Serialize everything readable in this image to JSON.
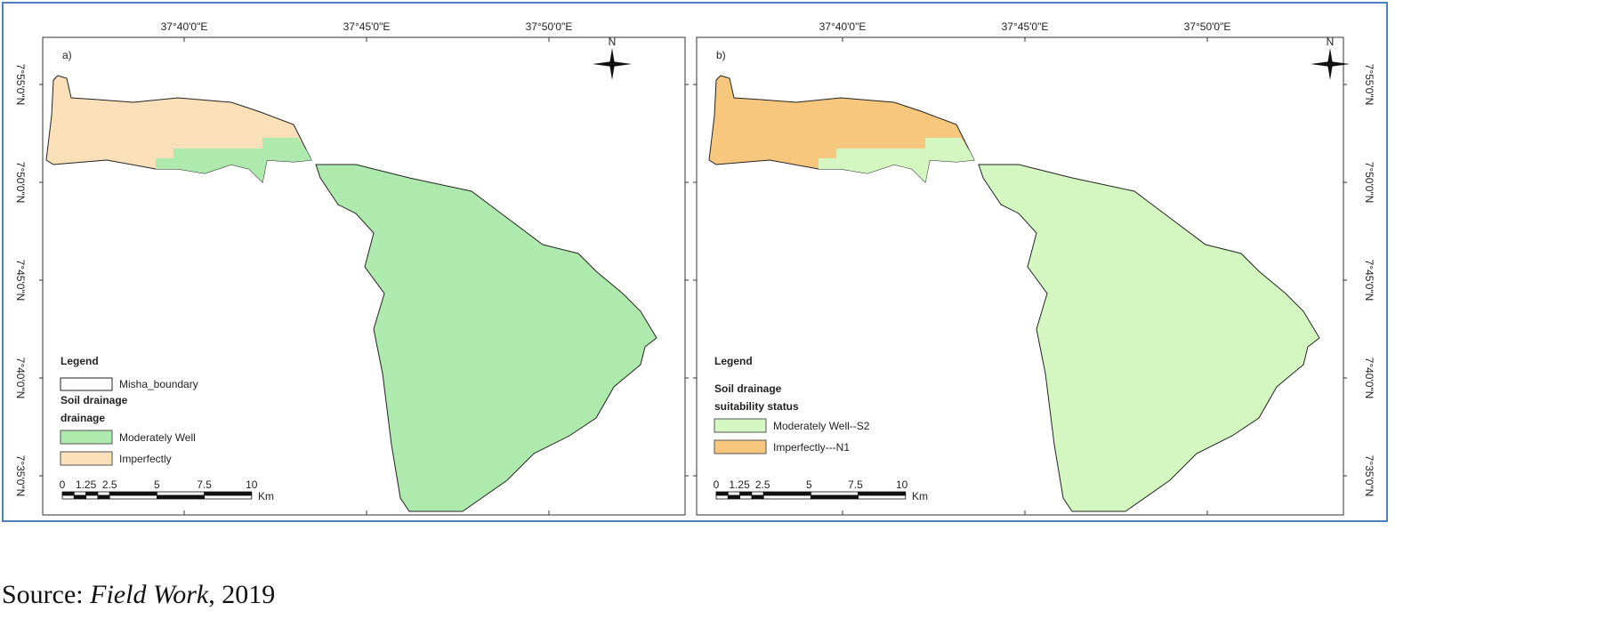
{
  "panels": [
    {
      "label": "a)",
      "top_ticks": [
        "37°40'0\"E",
        "37°45'0\"E",
        "37°50'0\"E"
      ],
      "side_ticks": [
        "7°55'0\"N",
        "7°50'0\"N",
        "7°45'0\"N",
        "7°40'0\"N",
        "7°35'0\"N"
      ],
      "north": "N",
      "legend": {
        "title": "Legend",
        "boundary": "Misha_boundary",
        "heading": "Soil drainage",
        "subheading": "drainage",
        "items": [
          {
            "label": "Moderately Well",
            "color": "#aeeaae"
          },
          {
            "label": "Imperfectly",
            "color": "#fae0b8"
          }
        ]
      },
      "scale": {
        "labels": [
          "0",
          "1.25",
          "2.5",
          "5",
          "7.5",
          "10"
        ],
        "unit": "Km"
      }
    },
    {
      "label": "b)",
      "top_ticks": [
        "37°40'0\"E",
        "37°45'0\"E",
        "37°50'0\"E"
      ],
      "side_ticks": [
        "7°55'0\"N",
        "7°50'0\"N",
        "7°45'0\"N",
        "7°40'0\"N",
        "7°35'0\"N"
      ],
      "north": "N",
      "legend": {
        "title": "Legend",
        "heading": "Soil drainage",
        "subheading": "suitability status",
        "items": [
          {
            "label": "Moderately Well--S2",
            "color": "#d4f7c2"
          },
          {
            "label": "Imperfectly---N1",
            "color": "#f8c77e"
          }
        ]
      },
      "scale": {
        "labels": [
          "0",
          "1.25",
          "2.5",
          "5",
          "7.5",
          "10"
        ],
        "unit": "Km"
      }
    }
  ],
  "caption": {
    "prefix": "Source: ",
    "emphasis": "Field Work",
    "suffix": ", 2019"
  }
}
